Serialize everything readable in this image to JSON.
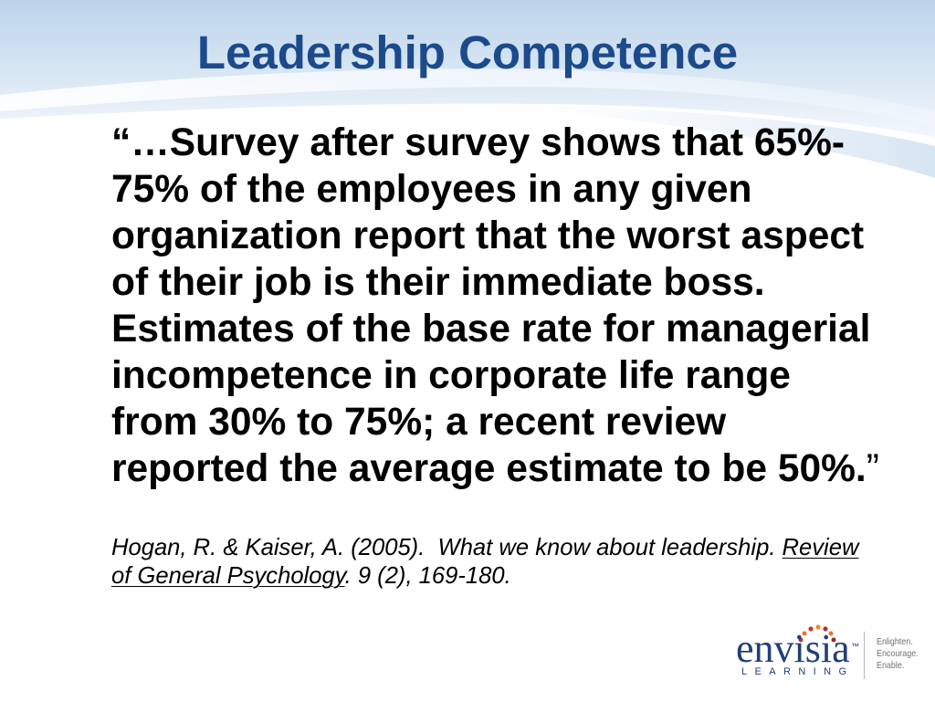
{
  "slide": {
    "title": "Leadership Competence"
  },
  "quote": {
    "lines": [
      "“…Survey after survey shows that 65%-",
      "75% of the employees in any given",
      "organization report that the worst aspect",
      "of their job is their immediate boss.",
      "Estimates of the base rate for managerial",
      "incompetence in corporate life range",
      "from 30% to 75%; a recent review"
    ],
    "last_line": "reported the average estimate to be 50%.",
    "closing_mark": "”"
  },
  "citation": {
    "line1_text": "Hogan, R. & Kaiser, A. (2005).  What we know about leadership. ",
    "journal_part1": "Review",
    "journal_part2": "of General Psychology",
    "line2_text": ". 9 (2), 169-180."
  },
  "logo": {
    "wordmark": "envisia",
    "trademark": "™",
    "subtitle": "LEARNING",
    "tagline": [
      "Enlighten.",
      "Encourage.",
      "Enable."
    ]
  },
  "colors": {
    "title": "#1c4a8a",
    "body_text": "#000000",
    "logo_blue": "#213f78",
    "tagline_grey": "#707070",
    "logo_dots": [
      "#b8322b",
      "#e9752a",
      "#c9372c",
      "#f08c2d",
      "#b8322b",
      "#e9752a",
      "#8e2b2b"
    ]
  }
}
